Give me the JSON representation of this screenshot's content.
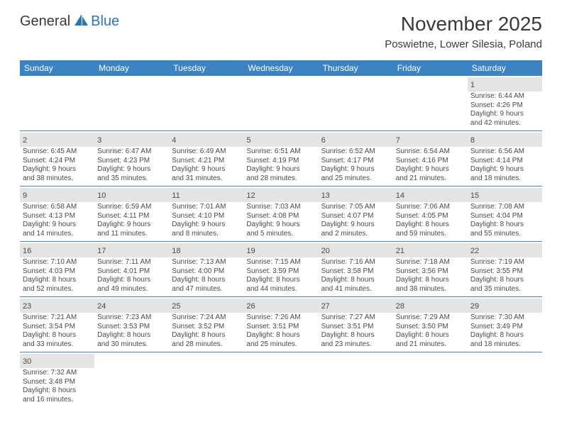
{
  "logo": {
    "text1": "General",
    "text2": "Blue"
  },
  "title": "November 2025",
  "location": "Poswietne, Lower Silesia, Poland",
  "header_bg": "#3c83c4",
  "weekdays": [
    "Sunday",
    "Monday",
    "Tuesday",
    "Wednesday",
    "Thursday",
    "Friday",
    "Saturday"
  ],
  "weeks": [
    [
      null,
      null,
      null,
      null,
      null,
      null,
      {
        "n": "1",
        "sr": "6:44 AM",
        "ss": "4:26 PM",
        "dl": "9 hours and 42 minutes."
      }
    ],
    [
      {
        "n": "2",
        "sr": "6:45 AM",
        "ss": "4:24 PM",
        "dl": "9 hours and 38 minutes."
      },
      {
        "n": "3",
        "sr": "6:47 AM",
        "ss": "4:23 PM",
        "dl": "9 hours and 35 minutes."
      },
      {
        "n": "4",
        "sr": "6:49 AM",
        "ss": "4:21 PM",
        "dl": "9 hours and 31 minutes."
      },
      {
        "n": "5",
        "sr": "6:51 AM",
        "ss": "4:19 PM",
        "dl": "9 hours and 28 minutes."
      },
      {
        "n": "6",
        "sr": "6:52 AM",
        "ss": "4:17 PM",
        "dl": "9 hours and 25 minutes."
      },
      {
        "n": "7",
        "sr": "6:54 AM",
        "ss": "4:16 PM",
        "dl": "9 hours and 21 minutes."
      },
      {
        "n": "8",
        "sr": "6:56 AM",
        "ss": "4:14 PM",
        "dl": "9 hours and 18 minutes."
      }
    ],
    [
      {
        "n": "9",
        "sr": "6:58 AM",
        "ss": "4:13 PM",
        "dl": "9 hours and 14 minutes."
      },
      {
        "n": "10",
        "sr": "6:59 AM",
        "ss": "4:11 PM",
        "dl": "9 hours and 11 minutes."
      },
      {
        "n": "11",
        "sr": "7:01 AM",
        "ss": "4:10 PM",
        "dl": "9 hours and 8 minutes."
      },
      {
        "n": "12",
        "sr": "7:03 AM",
        "ss": "4:08 PM",
        "dl": "9 hours and 5 minutes."
      },
      {
        "n": "13",
        "sr": "7:05 AM",
        "ss": "4:07 PM",
        "dl": "9 hours and 2 minutes."
      },
      {
        "n": "14",
        "sr": "7:06 AM",
        "ss": "4:05 PM",
        "dl": "8 hours and 59 minutes."
      },
      {
        "n": "15",
        "sr": "7:08 AM",
        "ss": "4:04 PM",
        "dl": "8 hours and 55 minutes."
      }
    ],
    [
      {
        "n": "16",
        "sr": "7:10 AM",
        "ss": "4:03 PM",
        "dl": "8 hours and 52 minutes."
      },
      {
        "n": "17",
        "sr": "7:11 AM",
        "ss": "4:01 PM",
        "dl": "8 hours and 49 minutes."
      },
      {
        "n": "18",
        "sr": "7:13 AM",
        "ss": "4:00 PM",
        "dl": "8 hours and 47 minutes."
      },
      {
        "n": "19",
        "sr": "7:15 AM",
        "ss": "3:59 PM",
        "dl": "8 hours and 44 minutes."
      },
      {
        "n": "20",
        "sr": "7:16 AM",
        "ss": "3:58 PM",
        "dl": "8 hours and 41 minutes."
      },
      {
        "n": "21",
        "sr": "7:18 AM",
        "ss": "3:56 PM",
        "dl": "8 hours and 38 minutes."
      },
      {
        "n": "22",
        "sr": "7:19 AM",
        "ss": "3:55 PM",
        "dl": "8 hours and 35 minutes."
      }
    ],
    [
      {
        "n": "23",
        "sr": "7:21 AM",
        "ss": "3:54 PM",
        "dl": "8 hours and 33 minutes."
      },
      {
        "n": "24",
        "sr": "7:23 AM",
        "ss": "3:53 PM",
        "dl": "8 hours and 30 minutes."
      },
      {
        "n": "25",
        "sr": "7:24 AM",
        "ss": "3:52 PM",
        "dl": "8 hours and 28 minutes."
      },
      {
        "n": "26",
        "sr": "7:26 AM",
        "ss": "3:51 PM",
        "dl": "8 hours and 25 minutes."
      },
      {
        "n": "27",
        "sr": "7:27 AM",
        "ss": "3:51 PM",
        "dl": "8 hours and 23 minutes."
      },
      {
        "n": "28",
        "sr": "7:29 AM",
        "ss": "3:50 PM",
        "dl": "8 hours and 21 minutes."
      },
      {
        "n": "29",
        "sr": "7:30 AM",
        "ss": "3:49 PM",
        "dl": "8 hours and 18 minutes."
      }
    ],
    [
      {
        "n": "30",
        "sr": "7:32 AM",
        "ss": "3:48 PM",
        "dl": "8 hours and 16 minutes."
      },
      null,
      null,
      null,
      null,
      null,
      null
    ]
  ],
  "labels": {
    "sunrise": "Sunrise: ",
    "sunset": "Sunset: ",
    "daylight": "Daylight: "
  }
}
